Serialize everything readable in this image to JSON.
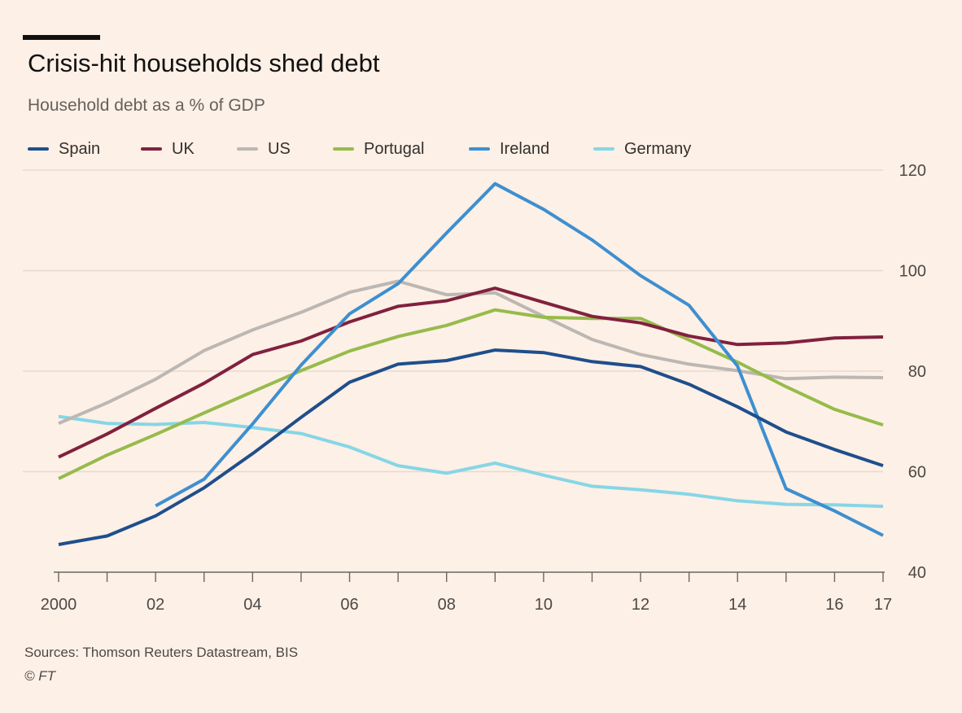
{
  "header": {
    "title": "Crisis-hit households shed debt",
    "subtitle": "Household debt as a % of  GDP"
  },
  "footer": {
    "source": "Sources: Thomson Reuters Datastream, BIS",
    "copyright": "© FT"
  },
  "chart_data": {
    "type": "line",
    "title": "Crisis-hit households shed debt",
    "subtitle": "Household debt as a % of  GDP",
    "xlabel": "",
    "ylabel": "",
    "x": [
      2000,
      2001,
      2002,
      2003,
      2004,
      2005,
      2006,
      2007,
      2008,
      2009,
      2010,
      2011,
      2012,
      2013,
      2014,
      2015,
      2016,
      2017
    ],
    "xlim": [
      2000,
      2017
    ],
    "ylim": [
      40,
      120
    ],
    "x_ticks": [
      {
        "value": 2000,
        "label": "2000"
      },
      {
        "value": 2002,
        "label": "02"
      },
      {
        "value": 2004,
        "label": "04"
      },
      {
        "value": 2006,
        "label": "06"
      },
      {
        "value": 2008,
        "label": "08"
      },
      {
        "value": 2010,
        "label": "10"
      },
      {
        "value": 2012,
        "label": "12"
      },
      {
        "value": 2014,
        "label": "14"
      },
      {
        "value": 2016,
        "label": "16"
      },
      {
        "value": 2017,
        "label": "17"
      }
    ],
    "y_ticks": [
      {
        "value": 40,
        "label": "40"
      },
      {
        "value": 60,
        "label": "60"
      },
      {
        "value": 80,
        "label": "80"
      },
      {
        "value": 100,
        "label": "100"
      },
      {
        "value": 120,
        "label": "120"
      }
    ],
    "y_axis_side": "right",
    "grid": "horizontal",
    "legend_position": "top",
    "series": [
      {
        "name": "Spain",
        "color": "#1f4e8c",
        "values": [
          45.5,
          47.2,
          51.2,
          56.8,
          63.6,
          70.8,
          77.8,
          81.4,
          82.1,
          84.2,
          83.7,
          81.9,
          80.9,
          77.4,
          72.9,
          67.9,
          64.4,
          61.2
        ]
      },
      {
        "name": "UK",
        "color": "#80213f",
        "values": [
          62.9,
          67.5,
          72.6,
          77.6,
          83.3,
          86.0,
          89.8,
          92.9,
          94.0,
          96.5,
          93.7,
          90.9,
          89.6,
          87.0,
          85.3,
          85.6,
          86.6,
          86.8
        ]
      },
      {
        "name": "US",
        "color": "#bcb7b2",
        "values": [
          69.6,
          73.7,
          78.4,
          84.1,
          88.2,
          91.7,
          95.7,
          97.9,
          95.2,
          95.6,
          90.9,
          86.3,
          83.3,
          81.4,
          80.1,
          78.5,
          78.8,
          78.7
        ]
      },
      {
        "name": "Portugal",
        "color": "#96bb4b",
        "values": [
          58.6,
          63.3,
          67.4,
          71.7,
          75.9,
          80.1,
          84.0,
          86.9,
          89.1,
          92.2,
          90.7,
          90.5,
          90.5,
          86.2,
          81.8,
          76.9,
          72.4,
          69.3
        ]
      },
      {
        "name": "Ireland",
        "color": "#3d8fd0",
        "values": [
          null,
          null,
          53.2,
          58.5,
          69.5,
          81.2,
          91.4,
          97.4,
          107.5,
          117.3,
          112.2,
          106.1,
          99.0,
          93.1,
          81.0,
          56.6,
          52.2,
          47.3
        ]
      },
      {
        "name": "Germany",
        "color": "#86d6e6",
        "values": [
          71.0,
          69.6,
          69.4,
          69.8,
          68.8,
          67.6,
          64.9,
          61.2,
          59.7,
          61.7,
          59.3,
          57.1,
          56.4,
          55.5,
          54.2,
          53.5,
          53.4,
          53.1
        ]
      }
    ]
  }
}
